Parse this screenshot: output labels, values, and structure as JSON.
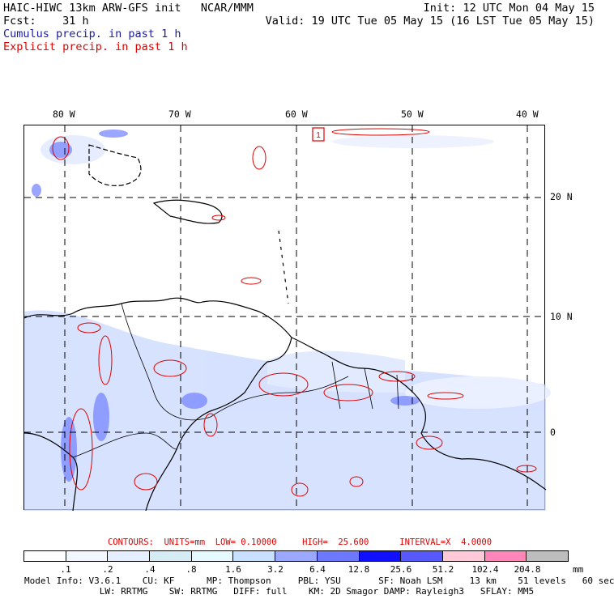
{
  "header": {
    "model_line": "HAIC-HIWC 13km ARW-GFS init   NCAR/MMM",
    "fcst_line": "Fcst:    31 h",
    "init_line": "Init: 12 UTC Mon 04 May 15",
    "valid_line": "Valid: 19 UTC Tue 05 May 15 (16 LST Tue 05 May 15)",
    "field_cumulus": "Cumulus precip. in past 1 h",
    "field_explicit": "Explicit precip. in past 1 h"
  },
  "map": {
    "lon_labels": [
      "80 W",
      "70 W",
      "60 W",
      "50 W",
      "40 W"
    ],
    "lat_labels": [
      "20 N",
      "10 N",
      "0"
    ],
    "marker_label": "1"
  },
  "contour_info": "CONTOURS:  UNITS=mm  LOW= 0.10000     HIGH=  25.600      INTERVAL=X  4.0000",
  "colorbar": {
    "colors": [
      "#ffffff",
      "#f2f7ff",
      "#e4eeff",
      "#d5ecf5",
      "#e6fbff",
      "#c7e0ff",
      "#9aa9ff",
      "#6b78ff",
      "#1010ff",
      "#5858ff",
      "#ffc9d9",
      "#ff86b9",
      "#bdbdbd",
      "#3c3c3c",
      "#cba6ff"
    ],
    "ticks": [
      ".1",
      ".2",
      ".4",
      ".8",
      "1.6",
      "3.2",
      "6.4",
      "12.8",
      "25.6",
      "51.2",
      "102.4",
      "204.8"
    ],
    "units": "mm"
  },
  "footer": {
    "line1": "Model Info: V3.6.1    CU: KF      MP: Thompson     PBL: YSU       SF: Noah LSM     13 km    51 levels   60 sec",
    "line2": "              LW: RRTMG    SW: RRTMG   DIFF: full    KM: 2D Smagor DAMP: Rayleigh3   SFLAY: MM5"
  }
}
